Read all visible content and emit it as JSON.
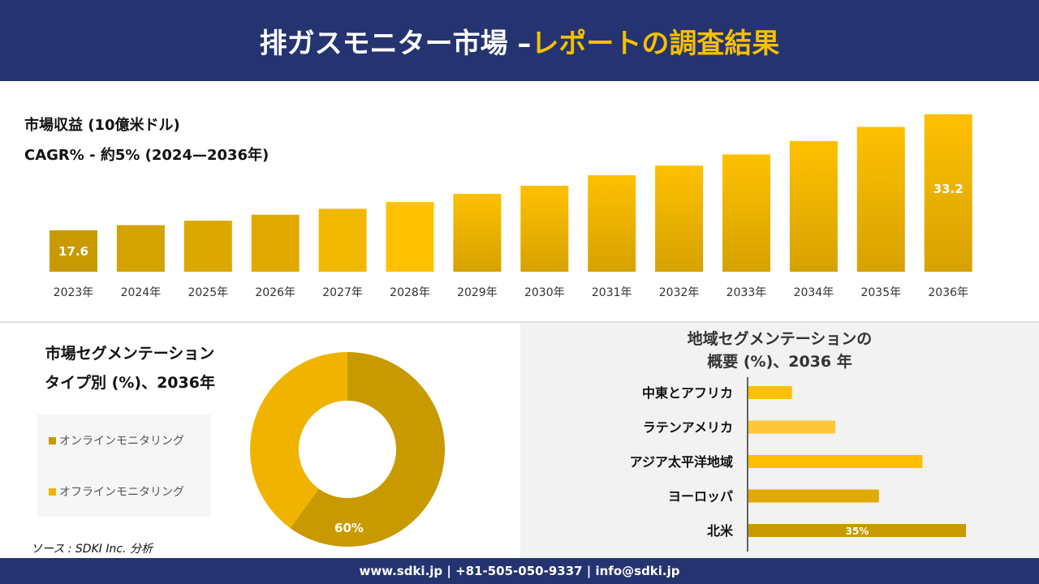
{
  "header": {
    "title_main": "排ガスモニター市場 –",
    "title_accent": "レポートの調査結果"
  },
  "colors": {
    "navy": "#253470",
    "gold": "#f5c000",
    "dark_gold": "#c89a00",
    "light_gold": "#ffc83a"
  },
  "chart_data": [
    {
      "type": "bar",
      "title": "市場収益 (10億米ドル)",
      "subtitle": "CAGR% - 約5% (2024—2036年)",
      "categories": [
        "2023年",
        "2024年",
        "2025年",
        "2026年",
        "2027年",
        "2028年",
        "2029年",
        "2030年",
        "2031年",
        "2032年",
        "2033年",
        "2034年",
        "2035年",
        "2036年"
      ],
      "values": [
        17.6,
        18.3,
        18.9,
        19.7,
        20.5,
        21.4,
        22.5,
        23.6,
        25.0,
        26.3,
        27.8,
        29.6,
        31.5,
        33.2
      ],
      "data_labels": {
        "0": "17.6",
        "13": "33.2"
      }
    },
    {
      "type": "pie",
      "donut": true,
      "title_line1": "市場セグメンテーション",
      "title_line2": "タイプ別 (%)、2036年",
      "labels": [
        "オンラインモニタリング",
        "オフラインモニタリング"
      ],
      "values": [
        60,
        40
      ],
      "colors": [
        "#c89a00",
        "#f0b400"
      ],
      "data_label": "60%",
      "legend": "left"
    },
    {
      "type": "bar",
      "orientation": "horizontal",
      "title_line1": "地域セグメンテーションの",
      "title_line2": "概要 (%)、2036 年",
      "categories": [
        "中東とアフリカ",
        "ラテンアメリカ",
        "アジア太平洋地域",
        "ヨーロッパ",
        "北米"
      ],
      "values": [
        7,
        14,
        28,
        21,
        35
      ],
      "colors": [
        "#ffc000",
        "#ffc83a",
        "#ffbf00",
        "#e0aa00",
        "#c89a00"
      ],
      "data_label": "35%"
    }
  ],
  "source": "ソース : SDKI Inc. 分析",
  "footer": "www.sdki.jp | +81-505-050-9337 | info@sdki.jp"
}
